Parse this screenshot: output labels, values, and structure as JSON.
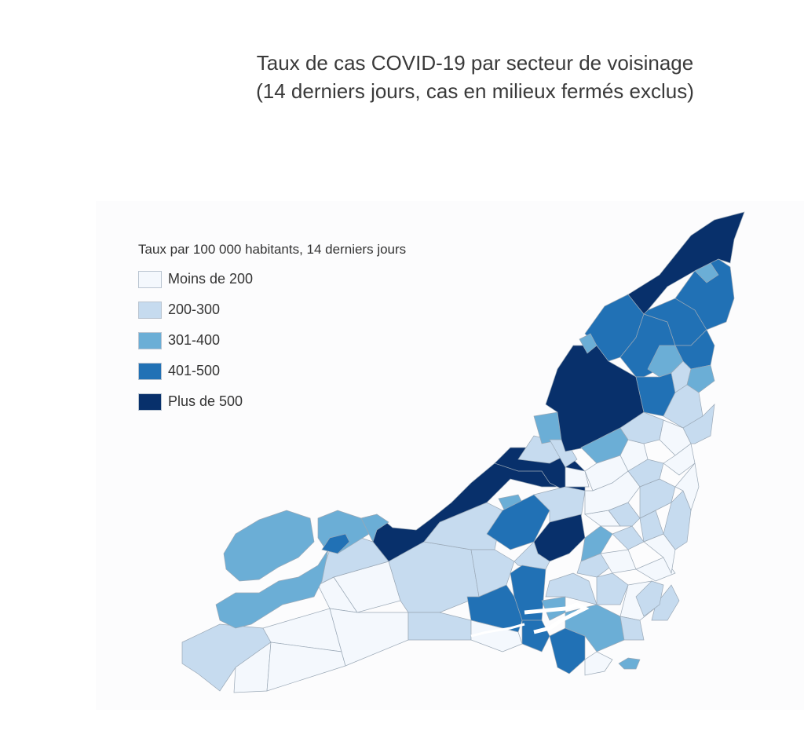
{
  "title": {
    "line1": "Taux de cas COVID-19 par secteur de voisinage",
    "line2": "(14 derniers jours, cas en milieux fermés exclus)"
  },
  "legend": {
    "title": "Taux par 100 000 habitants, 14 derniers jours",
    "items": [
      {
        "label": "Moins de 200",
        "color": "#f4f8fd"
      },
      {
        "label": "200-300",
        "color": "#c6dbef"
      },
      {
        "label": "301-400",
        "color": "#6baed6"
      },
      {
        "label": "401-500",
        "color": "#2171b5"
      },
      {
        "label": "Plus de 500",
        "color": "#08306b"
      }
    ]
  },
  "map": {
    "outline_color": "#ffffff",
    "border_color": "#9aa8b6"
  }
}
